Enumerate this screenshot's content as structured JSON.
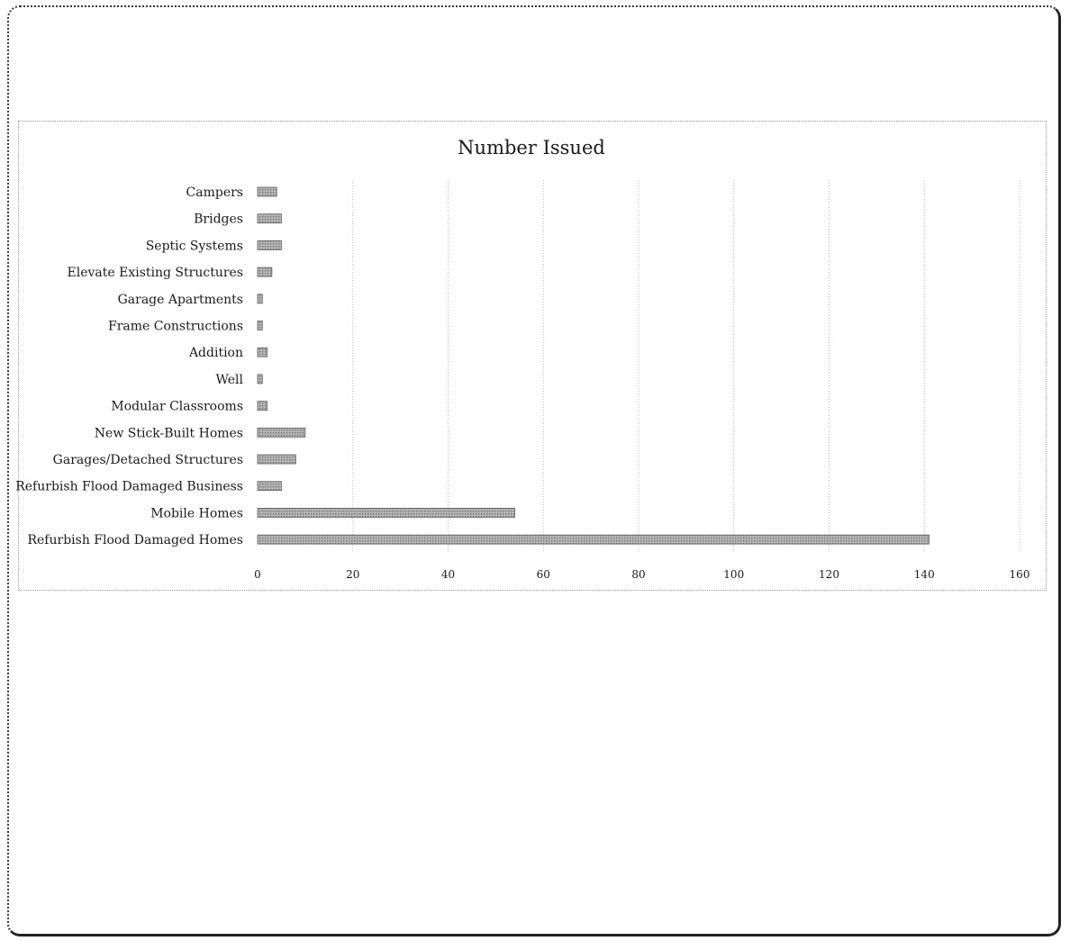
{
  "chart_data": {
    "type": "bar",
    "orientation": "horizontal",
    "title": "Number Issued",
    "categories": [
      "Campers",
      "Bridges",
      "Septic Systems",
      "Elevate Existing Structures",
      "Garage Apartments",
      "Frame Constructions",
      "Addition",
      "Well",
      "Modular Classrooms",
      "New Stick-Built Homes",
      "Garages/Detached Structures",
      "Refurbish Flood Damaged Business",
      "Mobile Homes",
      "Refurbish Flood Damaged Homes"
    ],
    "values": [
      4,
      5,
      5,
      3,
      1,
      1,
      2,
      1,
      2,
      10,
      8,
      5,
      54,
      141
    ],
    "xlim": [
      0,
      160
    ],
    "xticks": [
      "0",
      "20",
      "40",
      "60",
      "80",
      "100",
      "120",
      "140",
      "160"
    ],
    "xlabel": "",
    "ylabel": "",
    "grid": "vertical",
    "legend": "none",
    "bar_color": "#9a9a9a"
  }
}
